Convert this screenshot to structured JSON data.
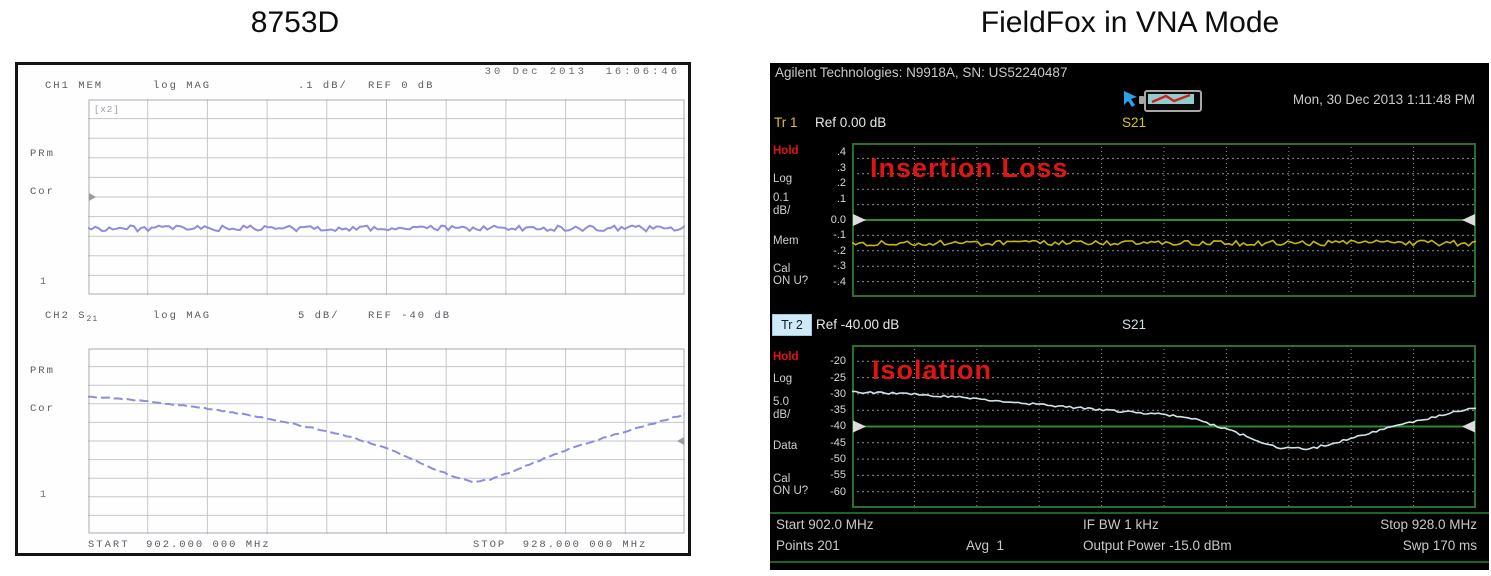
{
  "page": {
    "background": "#ffffff"
  },
  "left_panel": {
    "title": "8753D",
    "datetime": "30 Dec 2013  16:06:46",
    "ch1": {
      "channel": "CH1 MEM",
      "format": "log MAG",
      "scale": ".1 dB/",
      "ref": "REF 0 dB",
      "corner_label": "[x2]",
      "side_labels": {
        "prm": "PRm",
        "cor": "Cor"
      },
      "marker": "1"
    },
    "ch2": {
      "channel": "CH2 S",
      "param_sub": "21",
      "format": "log MAG",
      "scale": "5 dB/",
      "ref": "REF -40 dB",
      "side_labels": {
        "prm": "PRm",
        "cor": "Cor"
      },
      "marker": "1"
    },
    "footer": {
      "start": "START  902.000 000 MHz",
      "stop": "STOP  928.000 000 MHz"
    }
  },
  "right_panel": {
    "title": "FieldFox in VNA Mode",
    "header": "Agilent Technologies: N9918A, SN: US52240487",
    "clock": "Mon, 30 Dec 2013 1:11:48 PM",
    "pointer_icon": "touch-pointer",
    "battery_icon": "battery-charging",
    "tr1": {
      "name": "Tr 1",
      "ref": "Ref 0.00 dB",
      "param": "S21",
      "annotation": "Insertion Loss",
      "sidebar": {
        "hold": "Hold",
        "log": "Log",
        "scale": "0.1",
        "unit": "dB/",
        "trace": "Mem",
        "cal1": "Cal",
        "cal2": "ON U?"
      },
      "y_labels": [
        ".4",
        ".3",
        ".2",
        ".1",
        "0.0",
        "-.1",
        "-.2",
        "-.3",
        "-.4"
      ]
    },
    "tr2": {
      "name": "Tr 2",
      "ref": "Ref -40.00 dB",
      "param": "S21",
      "annotation": "Isolation",
      "sidebar": {
        "hold": "Hold",
        "log": "Log",
        "scale": "5.0",
        "unit": "dB/",
        "trace": "Data",
        "cal1": "Cal",
        "cal2": "ON U?"
      },
      "y_labels": [
        "-20",
        "-25",
        "-30",
        "-35",
        "-40",
        "-45",
        "-50",
        "-55",
        "-60"
      ]
    },
    "status": {
      "start": "Start 902.0 MHz",
      "if_bw": "IF BW 1 kHz",
      "stop": "Stop 928.0 MHz",
      "points": "Points 201",
      "avg": "Avg  1",
      "output_power": "Output Power -15.0 dBm",
      "sweep": "Swp 170 ms"
    },
    "colors": {
      "trace_tr1": "#c9b70a",
      "trace_tr2": "#cfe3e8",
      "grid_green": "#2c6e2c",
      "annotation_red": "#dd1515",
      "hold_red": "#e41414",
      "tr_yellow": "#d9c61d"
    }
  },
  "chart_data": [
    {
      "id": "hp8753d-ch1",
      "type": "line",
      "title": "8753D CH1: S21 memory trace, log MAG, 0.1 dB/div, REF 0 dB",
      "x_range": [
        902,
        928
      ],
      "x_unit": "MHz",
      "ylim": [
        0.5,
        -0.5
      ],
      "y_unit": "dB",
      "grid": [
        10,
        10
      ],
      "series": [
        {
          "name": "S21 MEM",
          "color": "#8d8ddd",
          "flat_db": -0.16,
          "noise_db": 0.015
        }
      ]
    },
    {
      "id": "hp8753d-ch2",
      "type": "line",
      "title": "8753D CH2: S21, log MAG, 5 dB/div, REF -40 dB",
      "x_range": [
        902,
        928
      ],
      "x_unit": "MHz",
      "ylim": [
        -15,
        -65
      ],
      "y_unit": "dB",
      "grid": [
        10,
        10
      ],
      "series": [
        {
          "name": "S21",
          "color": "#8d8ddd",
          "noise_db": 0.15,
          "x_mhz": [
            902,
            904,
            906,
            908,
            910,
            912,
            913.5,
            915,
            916,
            917,
            918,
            918.8,
            919.6,
            920.5,
            921.5,
            922.5,
            924,
            925.5,
            927,
            928
          ],
          "values_db": [
            -28,
            -29,
            -30.3,
            -32,
            -34.2,
            -36.8,
            -39,
            -42,
            -44.5,
            -47.3,
            -49.8,
            -51,
            -50.2,
            -48.2,
            -45.6,
            -43.2,
            -40,
            -37.3,
            -34.6,
            -32.8
          ]
        }
      ]
    },
    {
      "id": "fieldfox-tr1",
      "type": "line",
      "title": "FieldFox Tr1: S21 insertion loss, 0.1 dB/div, Ref 0.00 dB",
      "x_range": [
        902,
        928
      ],
      "x_unit": "MHz",
      "ylim": [
        0.5,
        -0.5
      ],
      "y_unit": "dB",
      "grid": [
        10,
        10
      ],
      "series": [
        {
          "name": "S21 Mem",
          "color": "#c9b70a",
          "flat_db": -0.15,
          "noise_db": 0.018
        }
      ]
    },
    {
      "id": "fieldfox-tr2",
      "type": "line",
      "title": "FieldFox Tr2: S21 isolation, 5 dB/div, Ref -40.00 dB",
      "x_range": [
        902,
        928
      ],
      "x_unit": "MHz",
      "ylim": [
        -15,
        -65
      ],
      "y_unit": "dB",
      "grid": [
        10,
        10
      ],
      "series": [
        {
          "name": "S21",
          "color": "#cfe3e8",
          "noise_db": 0.35,
          "x_mhz": [
            902,
            903.5,
            905,
            906.5,
            908,
            909.5,
            911,
            912.5,
            914,
            915,
            916,
            917,
            917.8,
            918.6,
            919.2,
            919.8,
            920.4,
            921,
            921.8,
            922.6,
            923.4,
            924.2,
            925,
            926,
            927,
            928
          ],
          "values_db": [
            -29.5,
            -29.8,
            -30.3,
            -31,
            -32,
            -33,
            -34,
            -35,
            -35.8,
            -36.3,
            -37.3,
            -39.3,
            -41.3,
            -43.5,
            -45.3,
            -46.6,
            -46.2,
            -47,
            -45.6,
            -44,
            -42.3,
            -40.7,
            -39.3,
            -37.5,
            -35.8,
            -34.3
          ]
        }
      ]
    }
  ]
}
